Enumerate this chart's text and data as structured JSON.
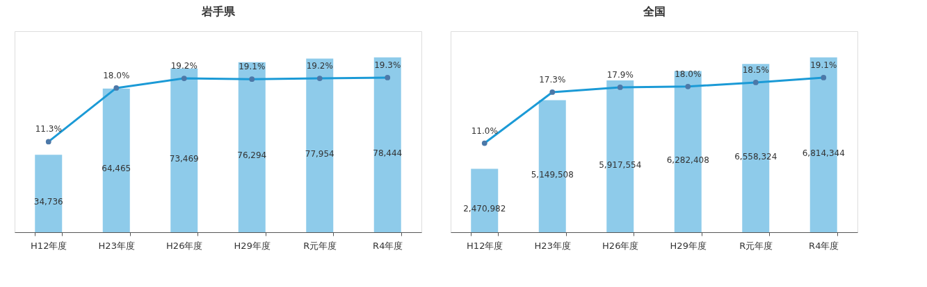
{
  "chart_data": [
    {
      "type": "bar",
      "title": "岩手県",
      "categories": [
        "H12年度",
        "H23年度",
        "H26年度",
        "H29年度",
        "R元年度",
        "R4年度"
      ],
      "series": [
        {
          "color": "#8ecbea",
          "values": [
            34736,
            64465,
            73469,
            76294,
            77954,
            78444
          ],
          "value_labels": [
            "34,736",
            "64,465",
            "73,469",
            "76,294",
            "77,954",
            "78,444"
          ]
        },
        {
          "type": "line",
          "axis": "y2",
          "color": "#1b9ad6",
          "marker": "circle",
          "values": [
            11.3,
            18.0,
            19.2,
            19.1,
            19.2,
            19.3
          ],
          "value_labels": [
            "11.3%",
            "18.0%",
            "19.2%",
            "19.1%",
            "19.2%",
            "19.3%"
          ]
        }
      ]
    },
    {
      "type": "bar",
      "title": "全国",
      "categories": [
        "H12年度",
        "H23年度",
        "H26年度",
        "H29年度",
        "R元年度",
        "R4年度"
      ],
      "series": [
        {
          "color": "#8ecbea",
          "values": [
            2470982,
            5149508,
            5917554,
            6282408,
            6558324,
            6814344
          ],
          "value_labels": [
            "2,470,982",
            "5,149,508",
            "5,917,554",
            "6,282,408",
            "6,558,324",
            "6,814,344"
          ]
        },
        {
          "type": "line",
          "axis": "y2",
          "color": "#1b9ad6",
          "marker": "circle",
          "values": [
            11.0,
            17.3,
            17.9,
            18.0,
            18.5,
            19.1
          ],
          "value_labels": [
            "11.0%",
            "17.3%",
            "17.9%",
            "18.0%",
            "18.5%",
            "19.1%"
          ]
        }
      ]
    }
  ]
}
